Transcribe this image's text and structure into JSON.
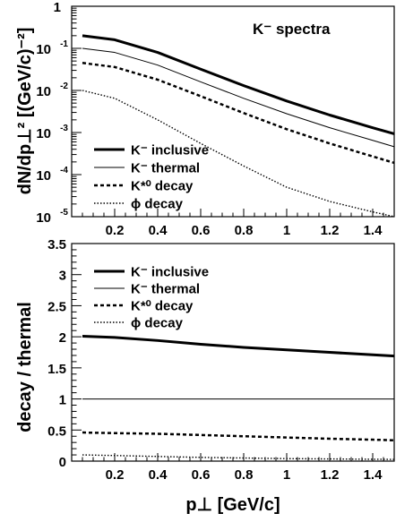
{
  "chart_data": [
    {
      "type": "line",
      "title": "K⁻ spectra",
      "ylabel": "dN/dp⊥² [(GeV/c)⁻²]",
      "xlabel": "",
      "yscale": "log",
      "xlim": [
        0.0,
        1.5
      ],
      "ylim": [
        1e-05,
        1
      ],
      "x_ticks": [
        0.2,
        0.4,
        0.6,
        0.8,
        1.0,
        1.2,
        1.4
      ],
      "x_tick_labels": [
        "0.2",
        "0.4",
        "0.6",
        "0.8",
        "1",
        "1.2",
        "1.4"
      ],
      "y_tick_labels": [
        {
          "value": 1e-05,
          "base": "10",
          "exp": "-5"
        },
        {
          "value": 0.0001,
          "base": "10",
          "exp": "-4"
        },
        {
          "value": 0.001,
          "base": "10",
          "exp": "-3"
        },
        {
          "value": 0.01,
          "base": "10",
          "exp": "-2"
        },
        {
          "value": 0.1,
          "base": "10",
          "exp": "-1"
        },
        {
          "value": 1,
          "base": "1",
          "exp": ""
        }
      ],
      "legend_position": "bottom-left",
      "x": [
        0.05,
        0.2,
        0.4,
        0.6,
        0.8,
        1.0,
        1.2,
        1.4,
        1.5
      ],
      "series": [
        {
          "name": "K⁻ inclusive",
          "style": "thick",
          "values": [
            0.2,
            0.16,
            0.08,
            0.032,
            0.013,
            0.0056,
            0.0026,
            0.0013,
            0.00093
          ]
        },
        {
          "name": "K⁻ thermal",
          "style": "thin",
          "values": [
            0.1,
            0.08,
            0.04,
            0.016,
            0.0065,
            0.0028,
            0.0013,
            0.00065,
            0.00046
          ]
        },
        {
          "name": "K*⁰ decay",
          "style": "dashed",
          "values": [
            0.045,
            0.036,
            0.018,
            0.0073,
            0.0029,
            0.0012,
            0.00055,
            0.00027,
            0.00019
          ]
        },
        {
          "name": "ϕ decay",
          "style": "dotted",
          "values": [
            0.01,
            0.0065,
            0.002,
            0.00055,
            0.00016,
            5e-05,
            2.3e-05,
            1.3e-05,
            1e-05
          ]
        }
      ]
    },
    {
      "type": "line",
      "title": "",
      "ylabel": "decay / thermal",
      "xlabel": "p⊥ [GeV/c]",
      "yscale": "linear",
      "xlim": [
        0.0,
        1.5
      ],
      "ylim": [
        0,
        3.5
      ],
      "x_ticks": [
        0.2,
        0.4,
        0.6,
        0.8,
        1.0,
        1.2,
        1.4
      ],
      "x_tick_labels": [
        "0.2",
        "0.4",
        "0.6",
        "0.8",
        "1",
        "1.2",
        "1.4"
      ],
      "y_ticks": [
        0,
        0.5,
        1,
        1.5,
        2,
        2.5,
        3,
        3.5
      ],
      "y_tick_labels": [
        "0",
        "0.5",
        "1",
        "1.5",
        "2",
        "2.5",
        "3",
        "3.5"
      ],
      "legend_position": "top-left",
      "x": [
        0.05,
        0.2,
        0.4,
        0.6,
        0.8,
        1.0,
        1.2,
        1.4,
        1.5
      ],
      "series": [
        {
          "name": "K⁻ inclusive",
          "style": "thick",
          "values": [
            2.01,
            1.99,
            1.94,
            1.88,
            1.83,
            1.79,
            1.75,
            1.71,
            1.69
          ]
        },
        {
          "name": "K⁻ thermal",
          "style": "thin",
          "values": [
            1,
            1,
            1,
            1,
            1,
            1,
            1,
            1,
            1
          ]
        },
        {
          "name": "K*⁰ decay",
          "style": "dashed",
          "values": [
            0.46,
            0.45,
            0.44,
            0.42,
            0.4,
            0.38,
            0.36,
            0.345,
            0.335
          ]
        },
        {
          "name": "ϕ decay",
          "style": "dotted",
          "values": [
            0.1,
            0.09,
            0.075,
            0.06,
            0.05,
            0.04,
            0.035,
            0.03,
            0.028
          ]
        }
      ]
    }
  ]
}
